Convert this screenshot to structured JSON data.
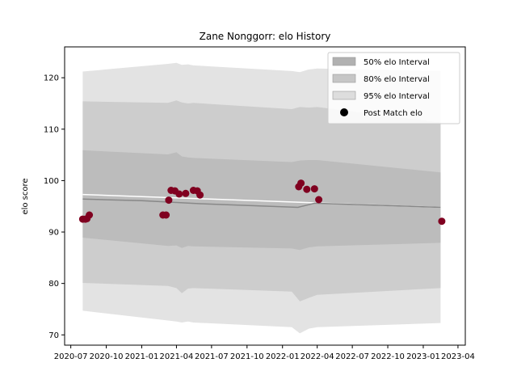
{
  "chart_data": {
    "type": "line",
    "title": "Zane Nonggorr: elo History",
    "xlabel": "",
    "ylabel": "elo score",
    "xlim": [
      "2020-06-15",
      "2023-04-20"
    ],
    "ylim": [
      68,
      126
    ],
    "x_tick_labels": [
      "2020-07",
      "2020-10",
      "2021-01",
      "2021-04",
      "2021-07",
      "2021-10",
      "2022-01",
      "2022-04",
      "2022-07",
      "2022-10",
      "2023-01",
      "2023-04"
    ],
    "y_ticks": [
      70,
      80,
      90,
      100,
      110,
      120
    ],
    "grid": false,
    "legend_position": "top-right",
    "legend": [
      {
        "label": "50% elo Interval",
        "kind": "patch",
        "color": "#bdbdbd"
      },
      {
        "label": "80% elo Interval",
        "kind": "patch",
        "color": "#cdcdcd"
      },
      {
        "label": "95% elo Interval",
        "kind": "patch",
        "color": "#e2e2e2"
      },
      {
        "label": "Post Match elo",
        "kind": "marker",
        "color": "#000000"
      }
    ],
    "bands": {
      "dates": [
        "2020-08-01",
        "2021-03-10",
        "2021-04-01",
        "2021-04-15",
        "2021-05-01",
        "2021-05-15",
        "2022-01-25",
        "2022-02-15",
        "2022-03-10",
        "2022-04-01",
        "2023-02-15"
      ],
      "p95_upper": [
        121.2,
        122.7,
        122.9,
        122.5,
        122.6,
        122.4,
        121.3,
        121.1,
        121.6,
        121.8,
        121.3
      ],
      "p95_lower": [
        74.7,
        72.8,
        72.6,
        72.4,
        72.6,
        72.4,
        71.5,
        70.3,
        71.2,
        71.5,
        72.3
      ],
      "p80_upper": [
        115.4,
        115.1,
        115.6,
        115.2,
        115.0,
        115.1,
        113.9,
        114.3,
        114.2,
        114.3,
        111.3
      ],
      "p80_lower": [
        80.1,
        79.5,
        79.1,
        78.1,
        79.0,
        79.1,
        78.4,
        76.5,
        77.2,
        77.8,
        79.1
      ],
      "p50_upper": [
        105.9,
        105.1,
        105.5,
        104.7,
        104.5,
        104.4,
        103.6,
        103.9,
        104.0,
        104.0,
        101.6
      ],
      "p50_lower": [
        88.9,
        87.3,
        87.4,
        86.9,
        87.3,
        87.2,
        86.8,
        86.5,
        87.0,
        87.2,
        87.9
      ]
    },
    "lines": [
      {
        "color": "#ffffff",
        "dates": [
          "2020-08-01",
          "2023-02-15"
        ],
        "values": [
          97.3,
          94.8
        ]
      },
      {
        "color": "#888888",
        "dates": [
          "2020-08-01",
          "2021-01-01",
          "2021-06-01",
          "2022-02-10",
          "2022-03-25",
          "2023-02-15"
        ],
        "values": [
          96.4,
          96.1,
          95.5,
          94.8,
          95.6,
          94.8
        ]
      }
    ],
    "points_color": "#800020",
    "points": [
      {
        "date": "2020-08-01",
        "value": 92.5
      },
      {
        "date": "2020-08-08",
        "value": 92.5
      },
      {
        "date": "2020-08-12",
        "value": 92.6
      },
      {
        "date": "2020-08-18",
        "value": 93.3
      },
      {
        "date": "2021-02-25",
        "value": 93.3
      },
      {
        "date": "2021-03-05",
        "value": 93.3
      },
      {
        "date": "2021-03-12",
        "value": 96.2
      },
      {
        "date": "2021-03-18",
        "value": 98.1
      },
      {
        "date": "2021-03-28",
        "value": 98.0
      },
      {
        "date": "2021-04-08",
        "value": 97.4
      },
      {
        "date": "2021-04-25",
        "value": 97.5
      },
      {
        "date": "2021-05-15",
        "value": 98.1
      },
      {
        "date": "2021-05-25",
        "value": 98.0
      },
      {
        "date": "2021-06-01",
        "value": 97.2
      },
      {
        "date": "2022-02-12",
        "value": 98.8
      },
      {
        "date": "2022-02-18",
        "value": 99.5
      },
      {
        "date": "2022-03-05",
        "value": 98.3
      },
      {
        "date": "2022-03-25",
        "value": 98.4
      },
      {
        "date": "2022-04-05",
        "value": 96.3
      },
      {
        "date": "2023-02-18",
        "value": 92.1
      }
    ]
  }
}
